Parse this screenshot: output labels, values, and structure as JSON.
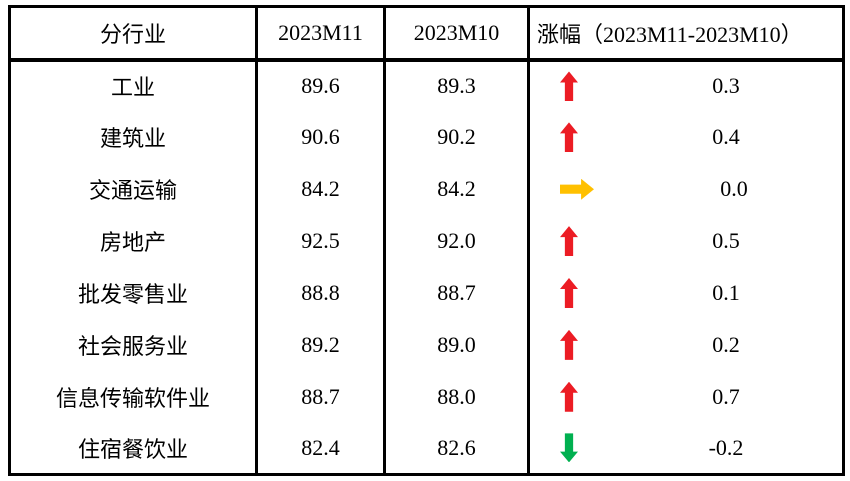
{
  "table": {
    "columns": {
      "industry": "分行业",
      "m11": "2023M11",
      "m10": "2023M10",
      "change": "涨幅（2023M11-2023M10）"
    },
    "rows": [
      {
        "industry": "工业",
        "m11": "89.6",
        "m10": "89.3",
        "change": "0.3",
        "direction": "up",
        "arrow_color": "#EC1C24"
      },
      {
        "industry": "建筑业",
        "m11": "90.6",
        "m10": "90.2",
        "change": "0.4",
        "direction": "up",
        "arrow_color": "#EC1C24"
      },
      {
        "industry": "交通运输",
        "m11": "84.2",
        "m10": "84.2",
        "change": "0.0",
        "direction": "right",
        "arrow_color": "#FFC000"
      },
      {
        "industry": "房地产",
        "m11": "92.5",
        "m10": "92.0",
        "change": "0.5",
        "direction": "up",
        "arrow_color": "#EC1C24"
      },
      {
        "industry": "批发零售业",
        "m11": "88.8",
        "m10": "88.7",
        "change": "0.1",
        "direction": "up",
        "arrow_color": "#EC1C24"
      },
      {
        "industry": "社会服务业",
        "m11": "89.2",
        "m10": "89.0",
        "change": "0.2",
        "direction": "up",
        "arrow_color": "#EC1C24"
      },
      {
        "industry": "信息传输软件业",
        "m11": "88.7",
        "m10": "88.0",
        "change": "0.7",
        "direction": "up",
        "arrow_color": "#EC1C24"
      },
      {
        "industry": "住宿餐饮业",
        "m11": "82.4",
        "m10": "82.6",
        "change": "-0.2",
        "direction": "down",
        "arrow_color": "#00B050"
      }
    ]
  },
  "colors": {
    "up": "#EC1C24",
    "flat": "#FFC000",
    "down": "#00B050",
    "border": "#000000",
    "background": "#FFFFFF"
  },
  "chart_data": {
    "type": "table",
    "title": "",
    "columns": [
      "分行业",
      "2023M11",
      "2023M10",
      "涨幅（2023M11-2023M10）"
    ],
    "categories": [
      "工业",
      "建筑业",
      "交通运输",
      "房地产",
      "批发零售业",
      "社会服务业",
      "信息传输软件业",
      "住宿餐饮业"
    ],
    "series": [
      {
        "name": "2023M11",
        "values": [
          89.6,
          90.6,
          84.2,
          92.5,
          88.8,
          89.2,
          88.7,
          82.4
        ]
      },
      {
        "name": "2023M10",
        "values": [
          89.3,
          90.2,
          84.2,
          92.0,
          88.7,
          89.0,
          88.0,
          82.6
        ]
      },
      {
        "name": "涨幅（2023M11-2023M10）",
        "values": [
          0.3,
          0.4,
          0.0,
          0.5,
          0.1,
          0.2,
          0.7,
          -0.2
        ]
      }
    ]
  }
}
